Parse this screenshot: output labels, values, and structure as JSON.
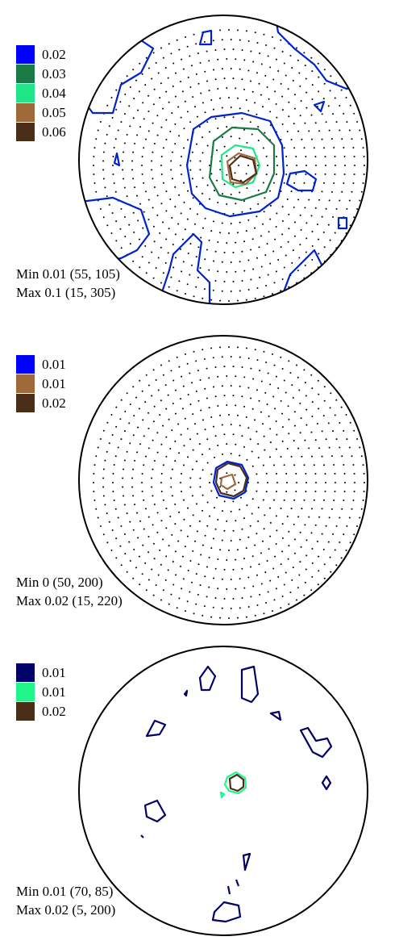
{
  "panels": [
    {
      "legend": [
        {
          "label": "0.02",
          "color": "#0000ff"
        },
        {
          "label": "0.03",
          "color": "#1a7a45"
        },
        {
          "label": "0.04",
          "color": "#22e58a"
        },
        {
          "label": "0.05",
          "color": "#a0693a"
        },
        {
          "label": "0.06",
          "color": "#4a2e18"
        }
      ],
      "min": "Min 0.01 (55, 105)",
      "max": "Max 0.1 (15, 305)"
    },
    {
      "legend": [
        {
          "label": "0.01",
          "color": "#0000ff"
        },
        {
          "label": "0.01",
          "color": "#a0693a"
        },
        {
          "label": "0.02",
          "color": "#4a2e18"
        }
      ],
      "min": "Min 0 (50, 200)",
      "max": "Max 0.02 (15, 220)"
    },
    {
      "legend": [
        {
          "label": "0.01",
          "color": "#000066"
        },
        {
          "label": "0.01",
          "color": "#22f58a"
        },
        {
          "label": "0.02",
          "color": "#4a2e18"
        }
      ],
      "min": "Min 0.01 (70, 85)",
      "max": "Max 0.02 (5, 200)"
    }
  ]
}
